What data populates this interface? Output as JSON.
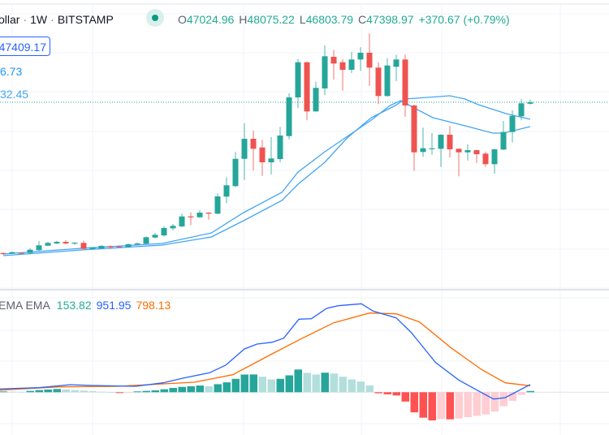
{
  "header": {
    "symbol": "ollar",
    "separator": "·",
    "interval": "1W",
    "exchange": "BITSTAMP",
    "ohlc": {
      "o_label": "O",
      "o": "47024.96",
      "h_label": "H",
      "h": "48075.22",
      "l_label": "L",
      "l": "46803.79",
      "c_label": "C",
      "c": "47398.97",
      "change": "+370.67 (+0.79%)"
    },
    "price_label": "47409.17",
    "ema_values": [
      "6.73",
      "32.45"
    ]
  },
  "macd_legend": {
    "title": "EMA EMA",
    "histogram": "153.82",
    "macd": "951.95",
    "signal": "798.13"
  },
  "colors": {
    "up": "#26a69a",
    "down": "#ef5350",
    "ema": "#42a5f5",
    "macd": "#2962ff",
    "signal": "#ff6d00",
    "hist_up_strong": "#26a69a",
    "hist_up_weak": "#b2dfdb",
    "hist_down_strong": "#ff5252",
    "hist_down_weak": "#ffcdd2",
    "price_line": "#26a69a"
  },
  "chart_data": [
    {
      "type": "candlestick",
      "interval": "1W",
      "last_close": 47398.97,
      "grid": true,
      "candles": [
        [
          9180,
          9340,
          8730,
          9080
        ],
        [
          9080,
          9550,
          8930,
          9410
        ],
        [
          9240,
          9340,
          9030,
          9160
        ],
        [
          9200,
          10440,
          8870,
          10020
        ],
        [
          9900,
          12220,
          9760,
          11130
        ],
        [
          11050,
          12020,
          10930,
          11750
        ],
        [
          11610,
          12290,
          11460,
          12020
        ],
        [
          12020,
          12490,
          11460,
          11610
        ],
        [
          11670,
          11880,
          11260,
          11810
        ],
        [
          11750,
          12290,
          10150,
          10230
        ],
        [
          10230,
          10650,
          10100,
          10580
        ],
        [
          10370,
          11260,
          10230,
          10990
        ],
        [
          10930,
          11130,
          10230,
          10640
        ],
        [
          10850,
          11050,
          10440,
          10720
        ],
        [
          10640,
          11610,
          10520,
          11400
        ],
        [
          11340,
          11880,
          11200,
          11610
        ],
        [
          11550,
          13400,
          11400,
          13190
        ],
        [
          13110,
          14340,
          12900,
          13810
        ],
        [
          13660,
          15990,
          13310,
          15520
        ],
        [
          15450,
          16540,
          14900,
          16070
        ],
        [
          15930,
          19160,
          15720,
          18460
        ],
        [
          18460,
          19490,
          16280,
          18330
        ],
        [
          18250,
          20040,
          18050,
          19420
        ],
        [
          19420,
          19500,
          17630,
          19160
        ],
        [
          19160,
          24360,
          19010,
          23540
        ],
        [
          23480,
          28410,
          21830,
          26360
        ],
        [
          26150,
          34790,
          25860,
          33060
        ],
        [
          33060,
          42110,
          27710,
          38140
        ],
        [
          38140,
          40200,
          30120,
          35610
        ],
        [
          35940,
          37880,
          28740,
          32180
        ],
        [
          32180,
          38550,
          29090,
          33140
        ],
        [
          33000,
          41170,
          32180,
          38970
        ],
        [
          38820,
          49660,
          38000,
          48630
        ],
        [
          48630,
          58360,
          45900,
          57540
        ],
        [
          57540,
          57700,
          42810,
          45070
        ],
        [
          45070,
          52600,
          45000,
          51040
        ],
        [
          50900,
          61800,
          49190,
          59060
        ],
        [
          58920,
          60630,
          53100,
          57210
        ],
        [
          57540,
          58360,
          50340,
          55630
        ],
        [
          55630,
          60150,
          54800,
          58240
        ],
        [
          58240,
          61330,
          55360,
          59950
        ],
        [
          59950,
          64880,
          51510,
          56180
        ],
        [
          56180,
          57540,
          46930,
          48980
        ],
        [
          48980,
          58570,
          48780,
          56720
        ],
        [
          56390,
          59470,
          52750,
          58240
        ],
        [
          58240,
          59470,
          43700,
          46580
        ],
        [
          46580,
          46800,
          29980,
          34710
        ],
        [
          34790,
          40960,
          33560,
          35740
        ],
        [
          35610,
          39580,
          34090,
          35740
        ],
        [
          35610,
          39300,
          31010,
          39170
        ],
        [
          39170,
          41430,
          33350,
          35470
        ],
        [
          35610,
          35700,
          28620,
          34710
        ],
        [
          34710,
          36760,
          32650,
          35260
        ],
        [
          35260,
          35350,
          32030,
          34230
        ],
        [
          34380,
          34910,
          31010,
          31700
        ],
        [
          31700,
          35550,
          29300,
          35470
        ],
        [
          35410,
          42670,
          35300,
          39850
        ],
        [
          39850,
          45340,
          37180,
          43960
        ],
        [
          43840,
          48160,
          42810,
          47130
        ],
        [
          47024.96,
          48075.22,
          46803.79,
          47398.97
        ]
      ],
      "ema_lines": [
        {
          "points": [
            [
              0,
              8933
            ],
            [
              8.7,
              10373
            ],
            [
              17.8,
              11607
            ],
            [
              23.3,
              14281
            ],
            [
              26.9,
              19424
            ],
            [
              31.2,
              24566
            ],
            [
              33,
              29709
            ],
            [
              36,
              34851
            ],
            [
              39.6,
              40405
            ],
            [
              41.2,
              42873
            ],
            [
              43.3,
              46576
            ],
            [
              44.5,
              47810
            ],
            [
              45.5,
              46576
            ],
            [
              48.1,
              43490
            ],
            [
              51.7,
              41433
            ],
            [
              54.8,
              39582
            ],
            [
              56,
              39582
            ],
            [
              59,
              41228
            ]
          ]
        },
        {
          "points": [
            [
              0,
              8522
            ],
            [
              8.7,
              9962
            ],
            [
              17.8,
              11196
            ],
            [
              23.3,
              13253
            ],
            [
              26.9,
              17367
            ],
            [
              31.2,
              22509
            ],
            [
              33,
              26623
            ],
            [
              36,
              32177
            ],
            [
              38.5,
              38348
            ],
            [
              41.2,
              43490
            ],
            [
              43.9,
              46576
            ],
            [
              45,
              48221
            ],
            [
              47.5,
              48633
            ],
            [
              50,
              49045
            ],
            [
              51.7,
              48221
            ],
            [
              53.2,
              46782
            ],
            [
              56.3,
              44519
            ],
            [
              59,
              43079
            ]
          ]
        }
      ]
    },
    {
      "type": "bar+line",
      "indicator": "MACD",
      "zero_line": true,
      "histogram": [
        100,
        70,
        50,
        165,
        265,
        330,
        400,
        330,
        265,
        200,
        130,
        65,
        30,
        -100,
        -30,
        100,
        165,
        230,
        365,
        530,
        660,
        730,
        825,
        730,
        990,
        1220,
        1650,
        2180,
        2190,
        1910,
        1580,
        1650,
        2080,
        2800,
        2380,
        2180,
        2410,
        2310,
        1910,
        1580,
        1320,
        830,
        -130,
        -260,
        -400,
        -1150,
        -2480,
        -3140,
        -3470,
        -3300,
        -3340,
        -3230,
        -3070,
        -2900,
        -2740,
        -2380,
        -1720,
        -1060,
        -330,
        153.82
      ],
      "macd_line": [
        [
          -0.4,
          400
        ],
        [
          4,
          560
        ],
        [
          7.5,
          930
        ],
        [
          10.1,
          830
        ],
        [
          14.8,
          730
        ],
        [
          17.9,
          1160
        ],
        [
          20.1,
          1730
        ],
        [
          23.1,
          2400
        ],
        [
          24.9,
          3330
        ],
        [
          27,
          5330
        ],
        [
          28.4,
          5930
        ],
        [
          30.1,
          6160
        ],
        [
          31.4,
          6660
        ],
        [
          33.1,
          9000
        ],
        [
          34.5,
          9060
        ],
        [
          36.2,
          10330
        ],
        [
          37.5,
          10660
        ],
        [
          40.1,
          10900
        ],
        [
          41.4,
          10000
        ],
        [
          44,
          9160
        ],
        [
          45.7,
          7330
        ],
        [
          48.4,
          3660
        ],
        [
          51,
          1500
        ],
        [
          53.2,
          160
        ],
        [
          54.9,
          -840
        ],
        [
          56.2,
          -670
        ],
        [
          59,
          951.95
        ]
      ],
      "signal_line": [
        [
          -0.4,
          260
        ],
        [
          6.2,
          660
        ],
        [
          12.7,
          730
        ],
        [
          21.4,
          1230
        ],
        [
          25.7,
          2160
        ],
        [
          30.1,
          4730
        ],
        [
          33.5,
          6660
        ],
        [
          37,
          8560
        ],
        [
          41,
          9760
        ],
        [
          44,
          9660
        ],
        [
          46.6,
          8660
        ],
        [
          50.1,
          5500
        ],
        [
          53.5,
          2830
        ],
        [
          56.2,
          1160
        ],
        [
          59,
          798.13
        ]
      ]
    }
  ]
}
